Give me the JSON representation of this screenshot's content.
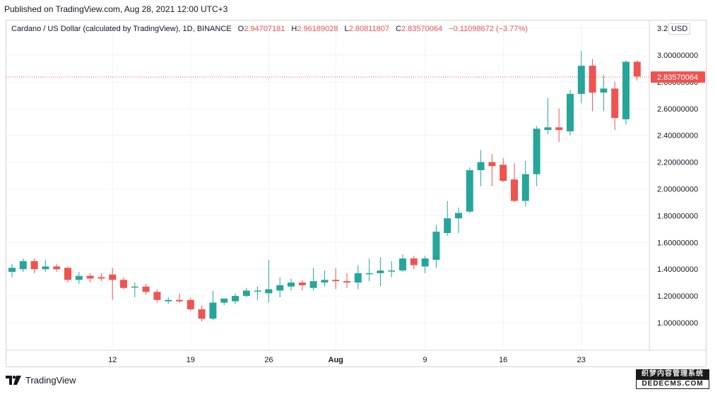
{
  "header": {
    "published": "Published on TradingView.com, Aug 28, 2021 12:00 UTC+3"
  },
  "legend": {
    "title": "Cardano / US Dollar (calculated by TradingView), 1D, BINANCE",
    "o_label": "O",
    "o_value": "2.94707181",
    "h_label": "H",
    "h_value": "2.96189028",
    "l_label": "L",
    "l_value": "2.80811807",
    "c_label": "C",
    "c_value": "2.83570064",
    "change": "−0.11098672 (−3.77%)"
  },
  "axis": {
    "currency": "USD",
    "current_price_label": "2.83570064"
  },
  "footer": {
    "brand": "TradingView"
  },
  "watermark": {
    "line1": "织梦内容管理系统",
    "line2": "DEDECMS.COM"
  },
  "colors": {
    "up": "#26a69a",
    "down": "#ef5350",
    "grid": "#f0f3fa",
    "axis_text": "#131722",
    "price_line": "#ef5350"
  },
  "chart_data": {
    "type": "candlestick",
    "title": "Cardano / US Dollar (calculated by TradingView), 1D, BINANCE",
    "ylim": [
      0.8,
      3.2
    ],
    "y_ticks": [
      "1.00000000",
      "1.20000000",
      "1.40000000",
      "1.60000000",
      "1.80000000",
      "2.00000000",
      "2.20000000",
      "2.40000000",
      "2.60000000",
      "2.80000000",
      "3.00000000",
      "3.2"
    ],
    "y_tick_values": [
      1.0,
      1.2,
      1.4,
      1.6,
      1.8,
      2.0,
      2.2,
      2.4,
      2.6,
      2.8,
      3.0,
      3.2
    ],
    "x_ticks": [
      {
        "label": "12",
        "index": 9
      },
      {
        "label": "19",
        "index": 16
      },
      {
        "label": "26",
        "index": 23
      },
      {
        "label": "Aug",
        "index": 29
      },
      {
        "label": "9",
        "index": 37
      },
      {
        "label": "16",
        "index": 44
      },
      {
        "label": "23",
        "index": 51
      }
    ],
    "current_price": 2.8357,
    "grid": true,
    "candles": [
      {
        "o": 1.38,
        "h": 1.44,
        "l": 1.34,
        "c": 1.41
      },
      {
        "o": 1.4,
        "h": 1.48,
        "l": 1.38,
        "c": 1.46
      },
      {
        "o": 1.46,
        "h": 1.48,
        "l": 1.37,
        "c": 1.4
      },
      {
        "o": 1.4,
        "h": 1.47,
        "l": 1.38,
        "c": 1.42
      },
      {
        "o": 1.42,
        "h": 1.44,
        "l": 1.38,
        "c": 1.4
      },
      {
        "o": 1.41,
        "h": 1.42,
        "l": 1.3,
        "c": 1.32
      },
      {
        "o": 1.32,
        "h": 1.38,
        "l": 1.29,
        "c": 1.35
      },
      {
        "o": 1.35,
        "h": 1.37,
        "l": 1.3,
        "c": 1.33
      },
      {
        "o": 1.34,
        "h": 1.37,
        "l": 1.31,
        "c": 1.33
      },
      {
        "o": 1.36,
        "h": 1.41,
        "l": 1.17,
        "c": 1.32
      },
      {
        "o": 1.32,
        "h": 1.34,
        "l": 1.25,
        "c": 1.26
      },
      {
        "o": 1.27,
        "h": 1.3,
        "l": 1.19,
        "c": 1.27
      },
      {
        "o": 1.27,
        "h": 1.29,
        "l": 1.21,
        "c": 1.23
      },
      {
        "o": 1.23,
        "h": 1.25,
        "l": 1.15,
        "c": 1.17
      },
      {
        "o": 1.16,
        "h": 1.19,
        "l": 1.14,
        "c": 1.17
      },
      {
        "o": 1.17,
        "h": 1.22,
        "l": 1.15,
        "c": 1.16
      },
      {
        "o": 1.17,
        "h": 1.19,
        "l": 1.09,
        "c": 1.1
      },
      {
        "o": 1.1,
        "h": 1.13,
        "l": 1.01,
        "c": 1.03
      },
      {
        "o": 1.03,
        "h": 1.24,
        "l": 1.02,
        "c": 1.15
      },
      {
        "o": 1.15,
        "h": 1.18,
        "l": 1.13,
        "c": 1.18
      },
      {
        "o": 1.16,
        "h": 1.22,
        "l": 1.14,
        "c": 1.2
      },
      {
        "o": 1.2,
        "h": 1.26,
        "l": 1.19,
        "c": 1.24
      },
      {
        "o": 1.24,
        "h": 1.27,
        "l": 1.17,
        "c": 1.24
      },
      {
        "o": 1.22,
        "h": 1.47,
        "l": 1.15,
        "c": 1.25
      },
      {
        "o": 1.24,
        "h": 1.34,
        "l": 1.19,
        "c": 1.28
      },
      {
        "o": 1.27,
        "h": 1.33,
        "l": 1.24,
        "c": 1.3
      },
      {
        "o": 1.3,
        "h": 1.32,
        "l": 1.24,
        "c": 1.28
      },
      {
        "o": 1.26,
        "h": 1.41,
        "l": 1.24,
        "c": 1.31
      },
      {
        "o": 1.3,
        "h": 1.39,
        "l": 1.27,
        "c": 1.32
      },
      {
        "o": 1.32,
        "h": 1.41,
        "l": 1.25,
        "c": 1.31
      },
      {
        "o": 1.31,
        "h": 1.37,
        "l": 1.26,
        "c": 1.3
      },
      {
        "o": 1.3,
        "h": 1.43,
        "l": 1.25,
        "c": 1.37
      },
      {
        "o": 1.37,
        "h": 1.48,
        "l": 1.31,
        "c": 1.37
      },
      {
        "o": 1.37,
        "h": 1.49,
        "l": 1.27,
        "c": 1.39
      },
      {
        "o": 1.39,
        "h": 1.46,
        "l": 1.34,
        "c": 1.39
      },
      {
        "o": 1.39,
        "h": 1.51,
        "l": 1.38,
        "c": 1.48
      },
      {
        "o": 1.48,
        "h": 1.5,
        "l": 1.4,
        "c": 1.43
      },
      {
        "o": 1.42,
        "h": 1.5,
        "l": 1.37,
        "c": 1.48
      },
      {
        "o": 1.47,
        "h": 1.73,
        "l": 1.41,
        "c": 1.68
      },
      {
        "o": 1.67,
        "h": 1.91,
        "l": 1.65,
        "c": 1.78
      },
      {
        "o": 1.78,
        "h": 1.86,
        "l": 1.67,
        "c": 1.82
      },
      {
        "o": 1.83,
        "h": 2.16,
        "l": 1.82,
        "c": 2.14
      },
      {
        "o": 2.14,
        "h": 2.29,
        "l": 2.02,
        "c": 2.2
      },
      {
        "o": 2.2,
        "h": 2.26,
        "l": 2.02,
        "c": 2.17
      },
      {
        "o": 2.18,
        "h": 2.23,
        "l": 2.05,
        "c": 2.06
      },
      {
        "o": 2.07,
        "h": 2.19,
        "l": 1.9,
        "c": 1.91
      },
      {
        "o": 1.91,
        "h": 2.21,
        "l": 1.87,
        "c": 2.11
      },
      {
        "o": 2.11,
        "h": 2.47,
        "l": 2.02,
        "c": 2.45
      },
      {
        "o": 2.44,
        "h": 2.68,
        "l": 2.41,
        "c": 2.46
      },
      {
        "o": 2.46,
        "h": 2.6,
        "l": 2.35,
        "c": 2.44
      },
      {
        "o": 2.43,
        "h": 2.74,
        "l": 2.4,
        "c": 2.71
      },
      {
        "o": 2.71,
        "h": 3.03,
        "l": 2.64,
        "c": 2.92
      },
      {
        "o": 2.92,
        "h": 2.97,
        "l": 2.58,
        "c": 2.72
      },
      {
        "o": 2.72,
        "h": 2.85,
        "l": 2.58,
        "c": 2.75
      },
      {
        "o": 2.75,
        "h": 2.8,
        "l": 2.44,
        "c": 2.53
      },
      {
        "o": 2.52,
        "h": 2.96,
        "l": 2.48,
        "c": 2.95
      },
      {
        "o": 2.95,
        "h": 2.96,
        "l": 2.81,
        "c": 2.84
      }
    ]
  }
}
